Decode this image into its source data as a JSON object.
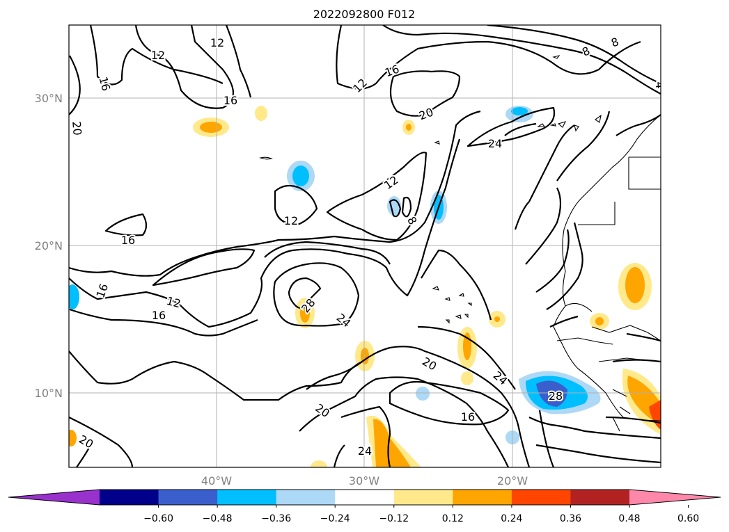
{
  "title": "2022092800 F012",
  "lat_labels": [
    "30°N",
    "20°N",
    "10°N"
  ],
  "lon_labels": [
    "40°W",
    "30°W",
    "20°W"
  ],
  "contour_labels": [
    "12",
    "12",
    "16",
    "16",
    "12",
    "16",
    "20",
    "24",
    "8",
    "8",
    "12",
    "16",
    "8",
    "12",
    "16",
    "12",
    "16",
    "28",
    "24",
    "20",
    "24",
    "20",
    "16",
    "24",
    "28",
    "20",
    "20",
    "4"
  ],
  "colorbar": {
    "ticks": [
      "−0.60",
      "−0.48",
      "−0.36",
      "−0.24",
      "−0.12",
      "0.12",
      "0.24",
      "0.36",
      "0.48",
      "0.60"
    ],
    "colors": [
      "#9932cc",
      "#00008b",
      "#3a5fcd",
      "#00bfff",
      "#add8f6",
      "#ffffff",
      "#ffe98a",
      "#ffa500",
      "#ff4500",
      "#b22222",
      "#ff88aa"
    ]
  }
}
